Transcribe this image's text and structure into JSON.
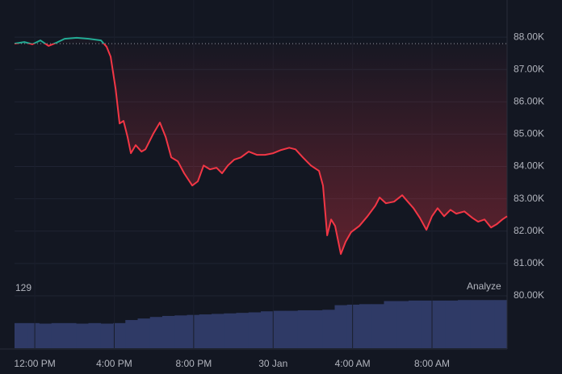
{
  "chart_data": {
    "type": "line",
    "x": [
      -1.02,
      -0.53,
      -0.12,
      0.28,
      0.69,
      1.1,
      1.5,
      2.11,
      2.72,
      3.33,
      3.62,
      3.82,
      4.07,
      4.27,
      4.47,
      4.67,
      4.84,
      5.08,
      5.37,
      5.57,
      5.98,
      6.3,
      6.59,
      6.87,
      7.2,
      7.52,
      7.93,
      8.21,
      8.5,
      8.82,
      9.15,
      9.43,
      9.72,
      10.04,
      10.37,
      10.77,
      11.18,
      11.59,
      12.0,
      12.4,
      12.81,
      13.13,
      13.5,
      13.9,
      14.31,
      14.51,
      14.72,
      14.92,
      15.12,
      15.41,
      15.65,
      15.93,
      16.34,
      16.75,
      17.15,
      17.36,
      17.68,
      18.09,
      18.5,
      18.78,
      19.07,
      19.39,
      19.72,
      20.0,
      20.28,
      20.61,
      20.93,
      21.22,
      21.63,
      22.03,
      22.32,
      22.64,
      22.97,
      23.25,
      23.54,
      23.78
    ],
    "values": [
      87.8,
      87.85,
      87.78,
      87.9,
      87.73,
      87.83,
      87.95,
      87.98,
      87.95,
      87.9,
      87.7,
      87.4,
      86.4,
      85.33,
      85.41,
      84.91,
      84.41,
      84.66,
      84.46,
      84.53,
      85.03,
      85.36,
      84.91,
      84.28,
      84.16,
      83.79,
      83.41,
      83.54,
      84.03,
      83.91,
      83.96,
      83.79,
      84.03,
      84.21,
      84.28,
      84.46,
      84.36,
      84.36,
      84.41,
      84.51,
      84.58,
      84.53,
      84.28,
      84.03,
      83.86,
      83.41,
      81.87,
      82.36,
      82.16,
      81.29,
      81.67,
      81.97,
      82.16,
      82.46,
      82.79,
      83.04,
      82.86,
      82.91,
      83.11,
      82.91,
      82.71,
      82.41,
      82.04,
      82.46,
      82.71,
      82.46,
      82.66,
      82.54,
      82.61,
      82.41,
      82.29,
      82.36,
      82.11,
      82.21,
      82.36,
      82.46
    ],
    "baseline": 87.8,
    "up_color": "#22ab94",
    "down_color": "#f23645",
    "xlim": [
      -1.02,
      23.78
    ],
    "xticks": [
      {
        "value": 0,
        "label": "12:00 PM"
      },
      {
        "value": 4,
        "label": "4:00 PM"
      },
      {
        "value": 8,
        "label": "8:00 PM"
      },
      {
        "value": 12,
        "label": "30 Jan"
      },
      {
        "value": 16,
        "label": "4:00 AM"
      },
      {
        "value": 20,
        "label": "8:00 AM"
      }
    ],
    "ylim": [
      79.5,
      89.1
    ],
    "yticks": [
      {
        "value": 88,
        "label": "88.00K"
      },
      {
        "value": 87,
        "label": "87.00K"
      },
      {
        "value": 86,
        "label": "86.00K"
      },
      {
        "value": 85,
        "label": "85.00K"
      },
      {
        "value": 84,
        "label": "84.00K"
      },
      {
        "value": 83,
        "label": "83.00K"
      },
      {
        "value": 82,
        "label": "82.00K"
      },
      {
        "value": 81,
        "label": "81.00K"
      },
      {
        "value": 80,
        "label": "80.00K"
      }
    ],
    "grid": true,
    "volume": {
      "label": "129",
      "color": "#2f3a66",
      "vlim": [
        0,
        129
      ],
      "values": [
        49,
        49,
        48,
        49,
        49,
        48,
        49,
        48,
        49,
        55,
        58,
        61,
        63,
        64,
        65,
        66,
        67,
        68,
        69,
        70,
        72,
        73,
        73,
        74,
        74,
        75,
        84,
        85,
        86,
        86,
        92,
        92,
        93,
        93,
        93,
        93,
        94,
        94,
        94,
        94
      ]
    },
    "button": "Analyze"
  }
}
